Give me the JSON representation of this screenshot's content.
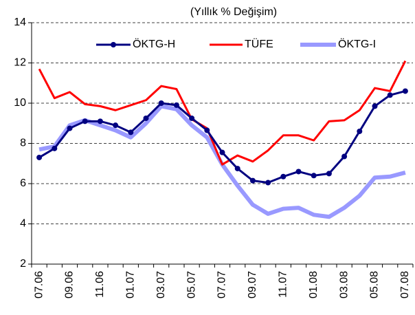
{
  "chart_data": {
    "type": "line",
    "title": "(Yıllık % Değişim)",
    "categories": [
      "07.06",
      null,
      "09.06",
      null,
      "11.06",
      null,
      "01.07",
      null,
      "03.07",
      null,
      "05.07",
      null,
      "07.07",
      null,
      "09.07",
      null,
      "11.07",
      null,
      "01.08",
      null,
      "03.08",
      null,
      "05.08",
      null,
      "07.08"
    ],
    "series": [
      {
        "name": "ÖKTG-H",
        "color": "#000080",
        "marker": true,
        "values": [
          7.3,
          7.75,
          8.75,
          9.1,
          9.1,
          8.9,
          8.55,
          9.25,
          10.0,
          9.9,
          9.25,
          8.65,
          7.55,
          6.75,
          6.15,
          6.05,
          6.35,
          6.6,
          6.4,
          6.5,
          7.35,
          8.6,
          9.85,
          10.4,
          10.6
        ]
      },
      {
        "name": "TÜFE",
        "color": "#ff0000",
        "values": [
          11.7,
          10.25,
          10.55,
          9.95,
          9.85,
          9.65,
          9.9,
          10.15,
          10.85,
          10.7,
          9.2,
          8.75,
          6.95,
          7.4,
          7.1,
          7.65,
          8.4,
          8.4,
          8.15,
          9.1,
          9.15,
          9.65,
          10.75,
          10.6,
          12.1
        ]
      },
      {
        "name": "ÖKTG-I",
        "color": "#9999ff",
        "values": [
          7.7,
          7.85,
          8.9,
          9.15,
          8.9,
          8.65,
          8.3,
          9.0,
          9.85,
          9.7,
          8.9,
          8.3,
          6.95,
          5.9,
          4.95,
          4.5,
          4.75,
          4.8,
          4.45,
          4.35,
          4.8,
          5.4,
          6.3,
          6.35,
          6.55
        ]
      }
    ],
    "ylim": [
      2,
      14
    ],
    "yticks": [
      2,
      4,
      6,
      8,
      10,
      12,
      14
    ],
    "grid": true
  }
}
